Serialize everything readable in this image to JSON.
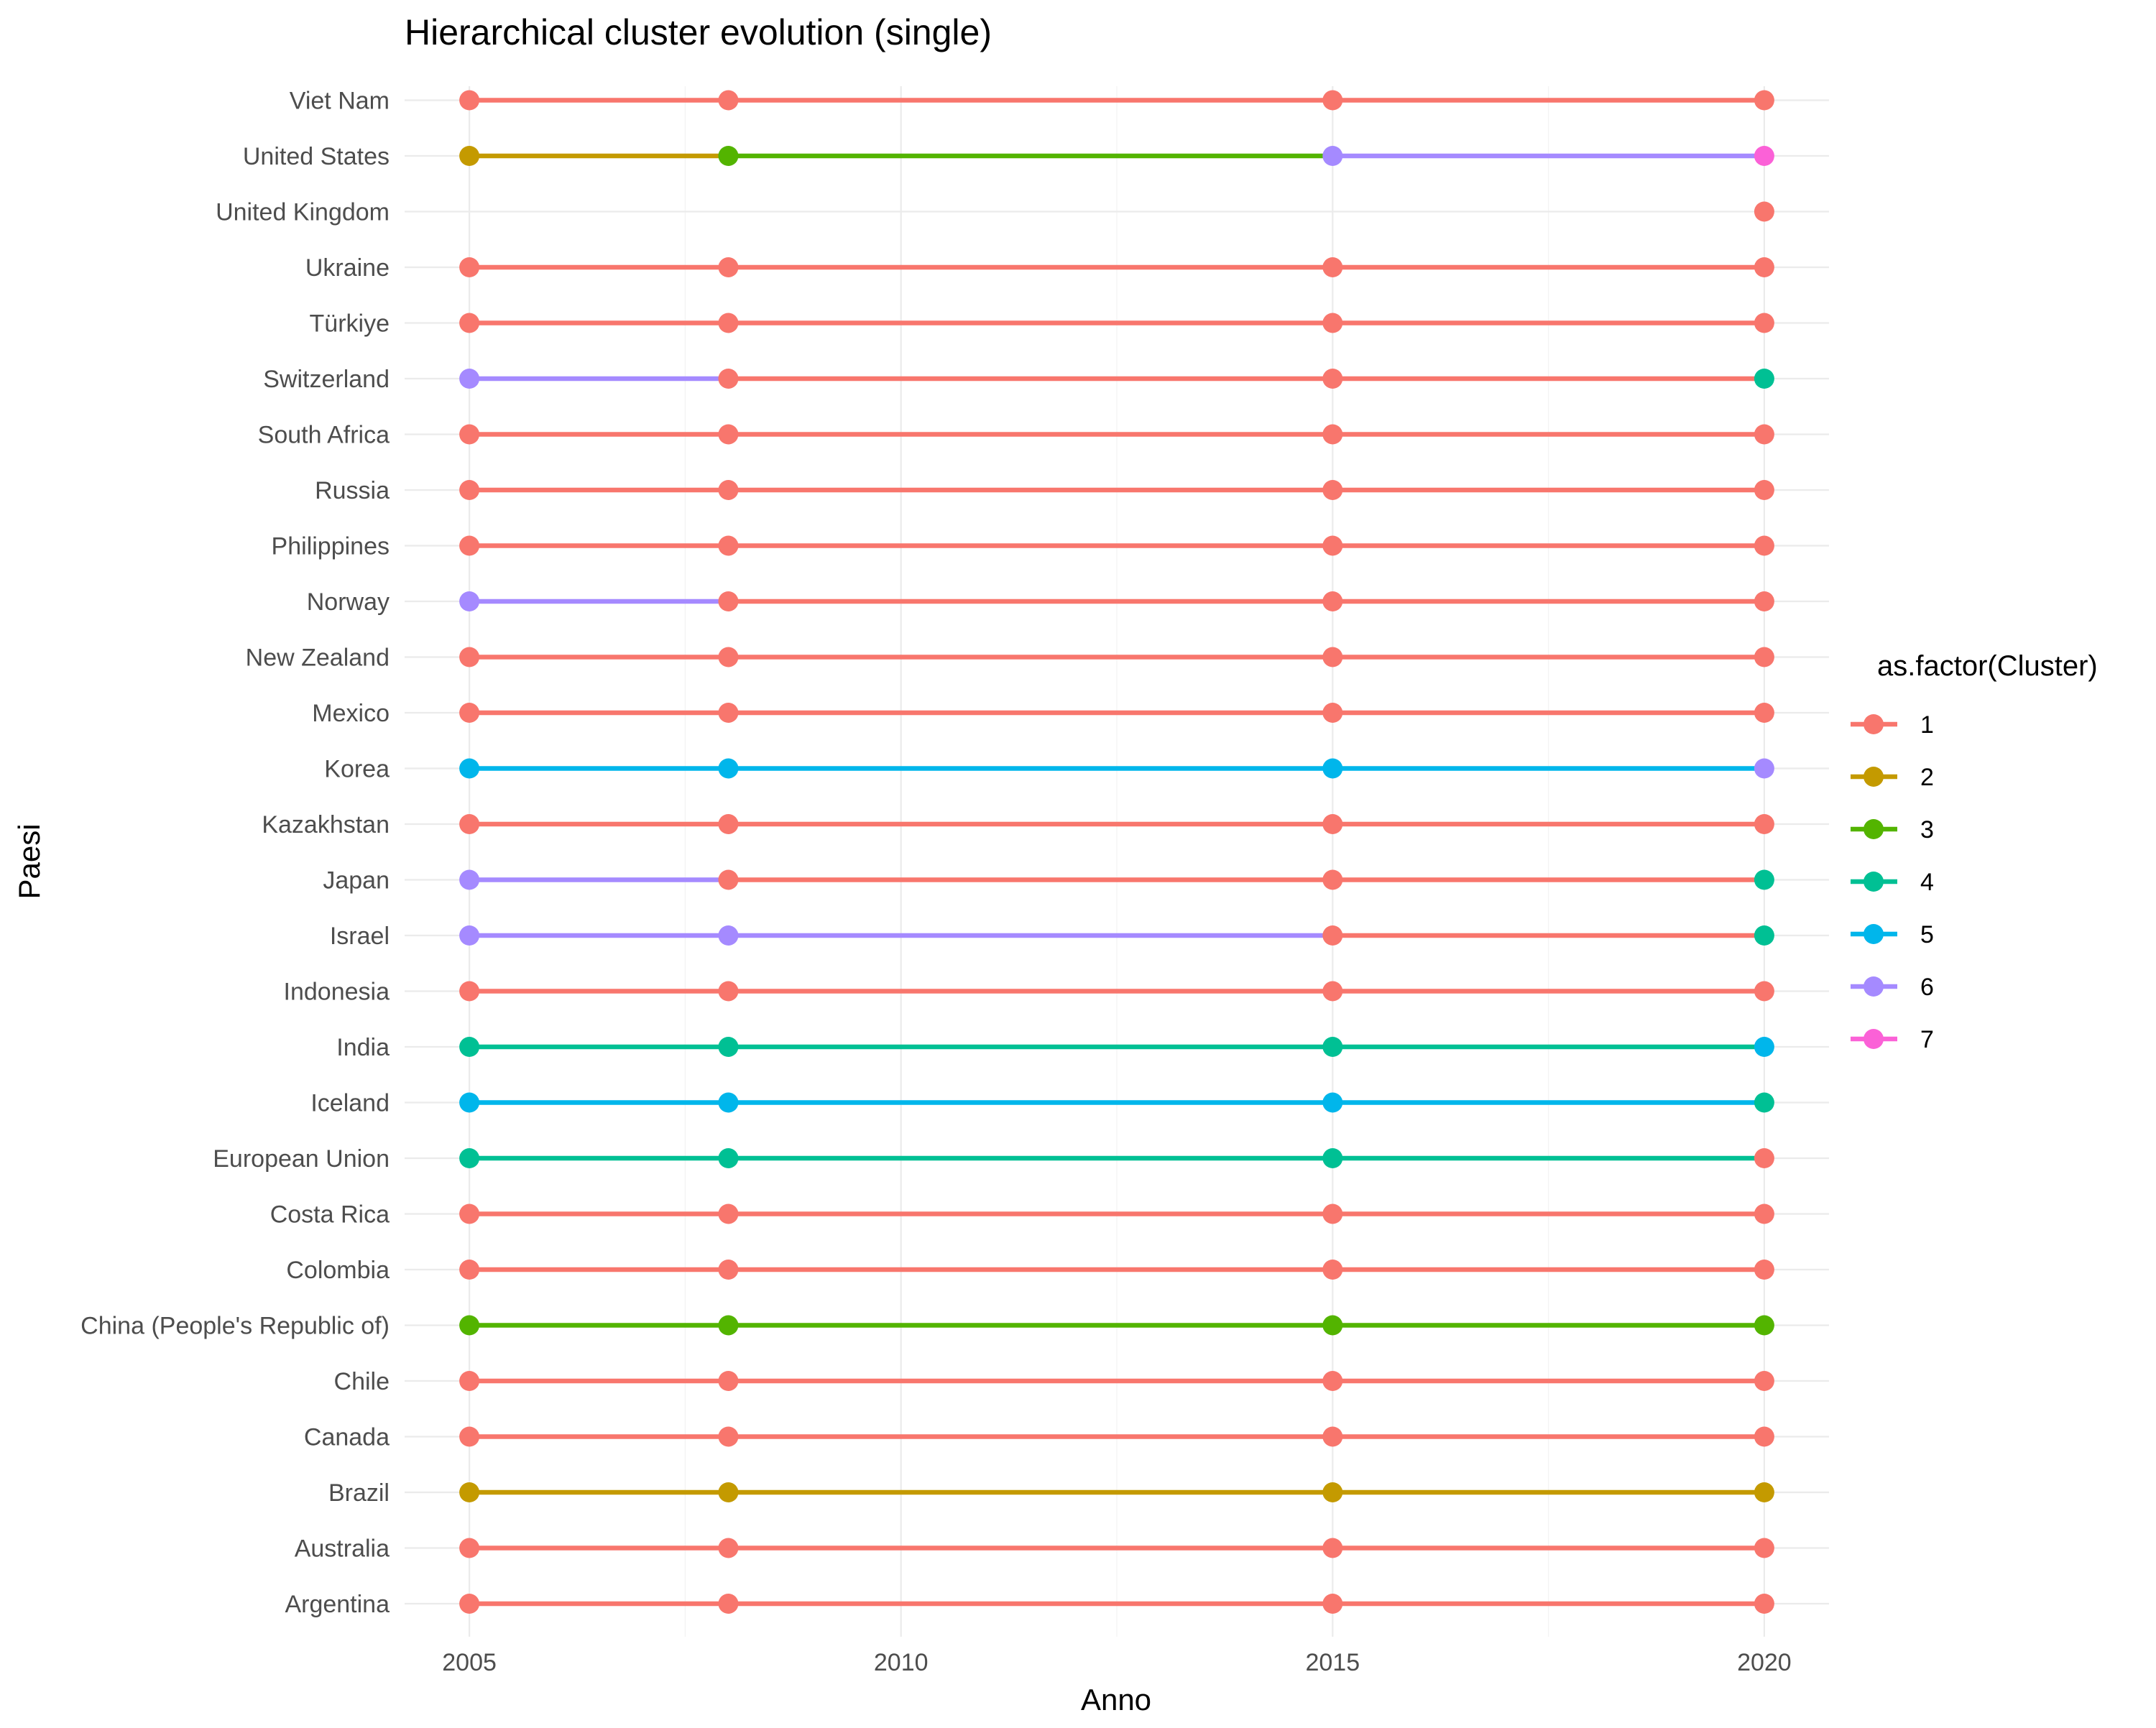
{
  "chart_data": {
    "type": "line",
    "title": "Hierarchical cluster evolution (single)",
    "xlabel": "Anno",
    "ylabel": "Paesi",
    "x_ticks": [
      2005,
      2010,
      2015,
      2020
    ],
    "xlim": [
      2004.25,
      2020.75
    ],
    "grid": true,
    "legend": {
      "title": "as.factor(Cluster)",
      "placement": "right",
      "entries": [
        {
          "label": "1",
          "cluster": 1,
          "color": "#F8766D"
        },
        {
          "label": "2",
          "cluster": 2,
          "color": "#C49A00"
        },
        {
          "label": "3",
          "cluster": 3,
          "color": "#53B400"
        },
        {
          "label": "4",
          "cluster": 4,
          "color": "#00C094"
        },
        {
          "label": "5",
          "cluster": 5,
          "color": "#00B6EB"
        },
        {
          "label": "6",
          "cluster": 6,
          "color": "#A58AFF"
        },
        {
          "label": "7",
          "cluster": 7,
          "color": "#FB61D7"
        }
      ]
    },
    "years": [
      2005,
      2008,
      2015,
      2020
    ],
    "countries": [
      {
        "name": "Argentina",
        "clusters": [
          1,
          1,
          1,
          1
        ]
      },
      {
        "name": "Australia",
        "clusters": [
          1,
          1,
          1,
          1
        ]
      },
      {
        "name": "Brazil",
        "clusters": [
          2,
          2,
          2,
          2
        ]
      },
      {
        "name": "Canada",
        "clusters": [
          1,
          1,
          1,
          1
        ]
      },
      {
        "name": "Chile",
        "clusters": [
          1,
          1,
          1,
          1
        ]
      },
      {
        "name": "China (People's Republic of)",
        "clusters": [
          3,
          3,
          3,
          3
        ]
      },
      {
        "name": "Colombia",
        "clusters": [
          1,
          1,
          1,
          1
        ]
      },
      {
        "name": "Costa Rica",
        "clusters": [
          1,
          1,
          1,
          1
        ]
      },
      {
        "name": "European Union",
        "clusters": [
          4,
          4,
          4,
          1
        ]
      },
      {
        "name": "Iceland",
        "clusters": [
          5,
          5,
          5,
          4
        ]
      },
      {
        "name": "India",
        "clusters": [
          4,
          4,
          4,
          5
        ]
      },
      {
        "name": "Indonesia",
        "clusters": [
          1,
          1,
          1,
          1
        ]
      },
      {
        "name": "Israel",
        "clusters": [
          6,
          6,
          1,
          4
        ]
      },
      {
        "name": "Japan",
        "clusters": [
          6,
          1,
          1,
          4
        ]
      },
      {
        "name": "Kazakhstan",
        "clusters": [
          1,
          1,
          1,
          1
        ]
      },
      {
        "name": "Korea",
        "clusters": [
          5,
          5,
          5,
          6
        ]
      },
      {
        "name": "Mexico",
        "clusters": [
          1,
          1,
          1,
          1
        ]
      },
      {
        "name": "New Zealand",
        "clusters": [
          1,
          1,
          1,
          1
        ]
      },
      {
        "name": "Norway",
        "clusters": [
          6,
          1,
          1,
          1
        ]
      },
      {
        "name": "Philippines",
        "clusters": [
          1,
          1,
          1,
          1
        ]
      },
      {
        "name": "Russia",
        "clusters": [
          1,
          1,
          1,
          1
        ]
      },
      {
        "name": "South Africa",
        "clusters": [
          1,
          1,
          1,
          1
        ]
      },
      {
        "name": "Switzerland",
        "clusters": [
          6,
          1,
          1,
          4
        ]
      },
      {
        "name": "Türkiye",
        "clusters": [
          1,
          1,
          1,
          1
        ]
      },
      {
        "name": "Ukraine",
        "clusters": [
          1,
          1,
          1,
          1
        ]
      },
      {
        "name": "United Kingdom",
        "clusters": [
          null,
          null,
          null,
          1
        ]
      },
      {
        "name": "United States",
        "clusters": [
          2,
          3,
          6,
          7
        ]
      },
      {
        "name": "Viet Nam",
        "clusters": [
          1,
          1,
          1,
          1
        ]
      }
    ]
  }
}
